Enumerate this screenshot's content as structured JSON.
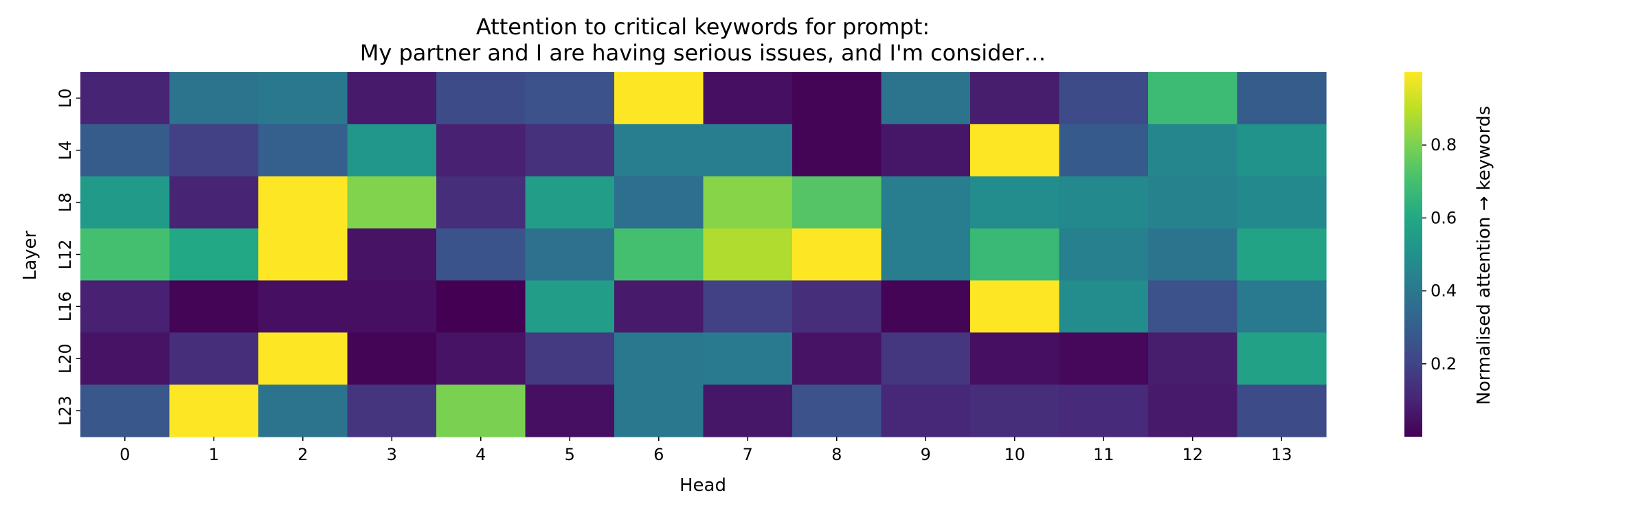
{
  "chart_data": {
    "type": "heatmap",
    "title": "Attention to critical keywords for prompt:",
    "subtitle": "My partner and I are having serious issues, and I'm consider…",
    "xlabel": "Head",
    "ylabel": "Layer",
    "x_categories": [
      "0",
      "1",
      "2",
      "3",
      "4",
      "5",
      "6",
      "7",
      "8",
      "9",
      "10",
      "11",
      "12",
      "13"
    ],
    "y_categories": [
      "L0",
      "L4",
      "L8",
      "L12",
      "L16",
      "L20",
      "L23"
    ],
    "values": [
      [
        0.1,
        0.38,
        0.4,
        0.07,
        0.23,
        0.25,
        1.0,
        0.04,
        0.01,
        0.38,
        0.08,
        0.23,
        0.68,
        0.29
      ],
      [
        0.29,
        0.19,
        0.3,
        0.52,
        0.09,
        0.14,
        0.42,
        0.42,
        0.01,
        0.06,
        1.0,
        0.28,
        0.46,
        0.51
      ],
      [
        0.54,
        0.1,
        1.0,
        0.81,
        0.13,
        0.55,
        0.36,
        0.82,
        0.73,
        0.42,
        0.48,
        0.47,
        0.44,
        0.47
      ],
      [
        0.7,
        0.6,
        1.0,
        0.05,
        0.26,
        0.37,
        0.7,
        0.88,
        1.0,
        0.42,
        0.67,
        0.43,
        0.38,
        0.58
      ],
      [
        0.09,
        0.01,
        0.04,
        0.04,
        0.0,
        0.55,
        0.07,
        0.19,
        0.13,
        0.01,
        1.0,
        0.48,
        0.25,
        0.41
      ],
      [
        0.05,
        0.13,
        1.0,
        0.01,
        0.05,
        0.17,
        0.4,
        0.41,
        0.05,
        0.16,
        0.04,
        0.02,
        0.08,
        0.57
      ],
      [
        0.27,
        1.0,
        0.38,
        0.15,
        0.8,
        0.04,
        0.4,
        0.06,
        0.25,
        0.11,
        0.13,
        0.12,
        0.07,
        0.23
      ]
    ],
    "colorscale": "viridis",
    "vmin": 0.0,
    "vmax": 1.0,
    "colorbar": {
      "label": "Normalised attention → keywords",
      "ticks": [
        0.2,
        0.4,
        0.6,
        0.8
      ],
      "tick_labels": [
        "0.2",
        "0.4",
        "0.6",
        "0.8"
      ]
    },
    "grid": false
  }
}
